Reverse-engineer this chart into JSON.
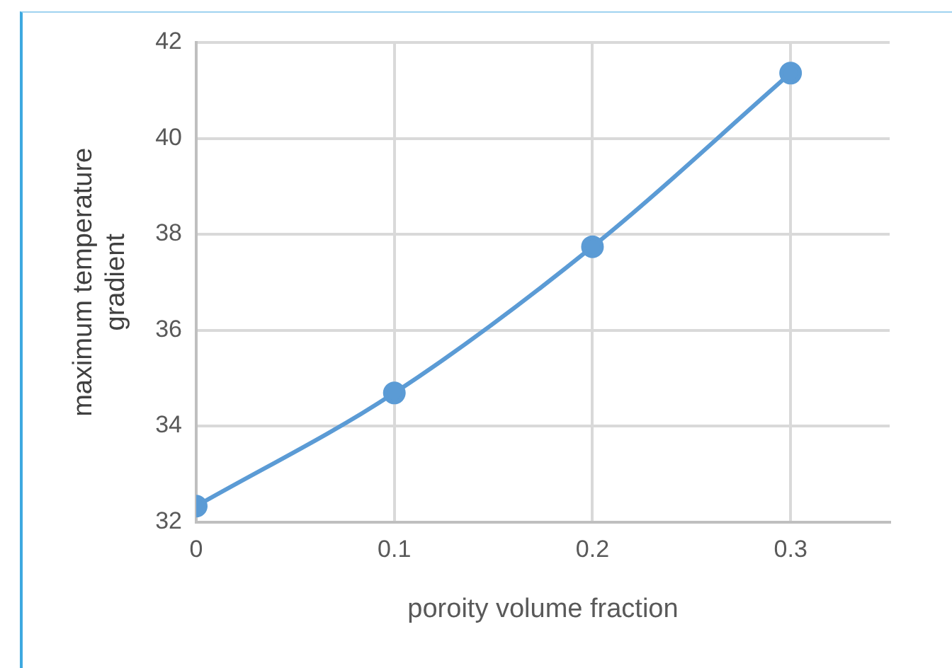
{
  "chart_data": {
    "type": "line",
    "xlabel": "poroity volume fraction",
    "ylabel": "maximum temperature gradient",
    "x": [
      0,
      0.1,
      0.2,
      0.3
    ],
    "series": [
      {
        "color": "#5b9bd5",
        "values": [
          32.33,
          34.69,
          37.74,
          41.36
        ]
      }
    ],
    "xlim": [
      0,
      0.35
    ],
    "xticks": [
      0,
      0.1,
      0.2,
      0.3
    ],
    "ylim": [
      32,
      42
    ],
    "yticks": [
      32,
      34,
      36,
      38,
      40,
      42
    ],
    "grid": true,
    "legend": false,
    "marker": "circle",
    "line_style": "solid"
  }
}
